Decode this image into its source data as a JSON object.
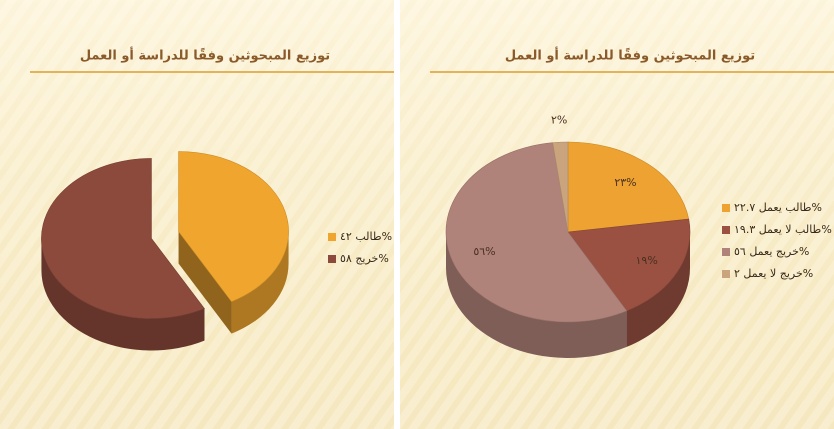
{
  "chart_data": [
    {
      "type": "pie",
      "title": "توزيع المبحوثين وفقًا للدراسة أو العمل",
      "categories": [
        "طالب ٤٢%",
        "خريج ٥٨%"
      ],
      "values": [
        42,
        58
      ],
      "colors": [
        "#f0a62e",
        "#8c4a3c"
      ],
      "exploded": true,
      "legend": "right"
    },
    {
      "type": "pie",
      "title": "توزيع المبحوثين وفقًا للدراسة أو العمل",
      "categories": [
        "طالب يعمل ٢٢.٧%",
        "طالب لا يعمل ١٩.٣%",
        "خريج يعمل ٥٦%",
        "خريج لا يعمل ٢%"
      ],
      "values": [
        22.7,
        19.3,
        56,
        2
      ],
      "value_labels": [
        "٢٣%",
        "١٩%",
        "٥٦%",
        "٢%"
      ],
      "colors": [
        "#eda231",
        "#9a5141",
        "#b0837a",
        "#c9a47c"
      ],
      "exploded": false,
      "legend": "right"
    }
  ]
}
